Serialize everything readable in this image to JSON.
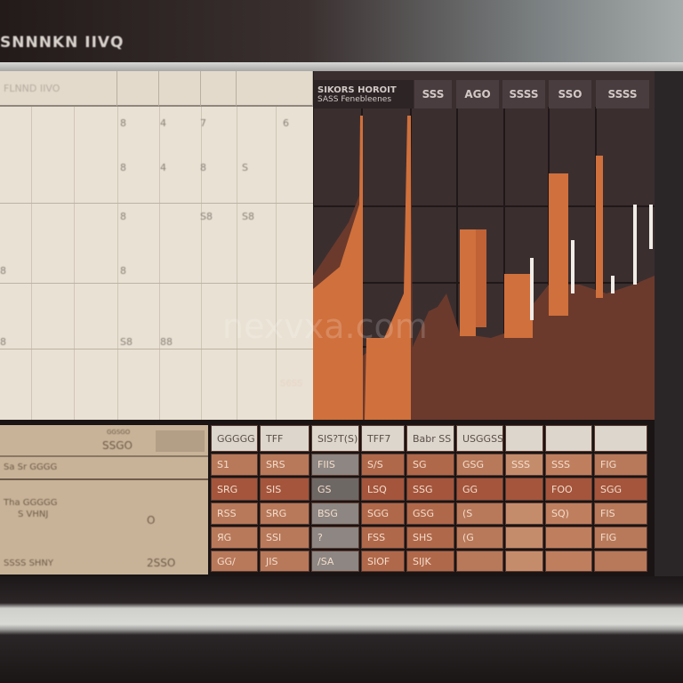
{
  "window": {
    "title": "SNNNKN IIVQ"
  },
  "left_panel": {
    "header": "FLNND IIVO",
    "labels": [
      {
        "r": 0,
        "c": 0,
        "t": "8"
      },
      {
        "r": 0,
        "c": 1,
        "t": "4"
      },
      {
        "r": 0,
        "c": 2,
        "t": "7"
      },
      {
        "r": 0,
        "c": 3,
        "t": "6"
      },
      {
        "r": 1,
        "c": 0,
        "t": "8"
      },
      {
        "r": 1,
        "c": 1,
        "t": "4"
      },
      {
        "r": 1,
        "c": 2,
        "t": "8"
      },
      {
        "r": 1,
        "c": 3,
        "t": "S"
      },
      {
        "r": 2,
        "c": 0,
        "t": "8"
      },
      {
        "r": 2,
        "c": 1,
        "t": "S8"
      },
      {
        "r": 2,
        "c": 2,
        "t": "S8"
      },
      {
        "r": 3,
        "c": 0,
        "t": "8"
      },
      {
        "r": 3,
        "c": 1,
        "t": "8"
      },
      {
        "r": 4,
        "c": 0,
        "t": "8"
      },
      {
        "r": 4,
        "c": 1,
        "t": "S8"
      },
      {
        "r": 4,
        "c": 2,
        "t": "88"
      }
    ]
  },
  "chart": {
    "headers": [
      "SIKORS HOROIT",
      "SSS",
      "AGO",
      "SSSS",
      "SSO",
      "SSSS"
    ],
    "subheader": "SASS Fenebleenes",
    "annotation": "S6SS",
    "colors": {
      "background": "#3b2e2f",
      "area": "#6b3a2c",
      "accent": "#d0703c",
      "highlight": "#f0ece6"
    }
  },
  "bottom_left": {
    "header_small": "GGSGO",
    "header_value": "SSGO",
    "rows": [
      "Sa Sr GGGG",
      "Tha GGGGG",
      "S VHNJ",
      "SSSS SHNY"
    ],
    "radio_value": "O",
    "total": "2SSO"
  },
  "table": {
    "headers": [
      "GGGGG",
      "TFF",
      "SIS?T(S)",
      "TFF7",
      "Babr SS",
      "USGGSS",
      "",
      "",
      ""
    ],
    "rows": [
      [
        "S1",
        "SRS",
        "FIIS",
        "S/S",
        "SG",
        "GSG",
        "SSS",
        "SSS",
        "FIG"
      ],
      [
        "SRG",
        "SIS",
        "GS",
        "LSQ",
        "SSG",
        "GG",
        "",
        "FOO",
        "SGG"
      ],
      [
        "RSS",
        "SRG",
        "BSG",
        "SGG",
        "GSG",
        "(S",
        "",
        "SQ)",
        "FIS"
      ],
      [
        "ЯG",
        "SSI",
        "?",
        "FSS",
        "SHS",
        "(G",
        "",
        "",
        "FIG"
      ],
      [
        "GG/",
        "JIS",
        "/SA",
        "SIOF",
        "SIJK",
        "",
        "",
        "",
        ""
      ]
    ]
  },
  "watermark": "nexvxa.com"
}
